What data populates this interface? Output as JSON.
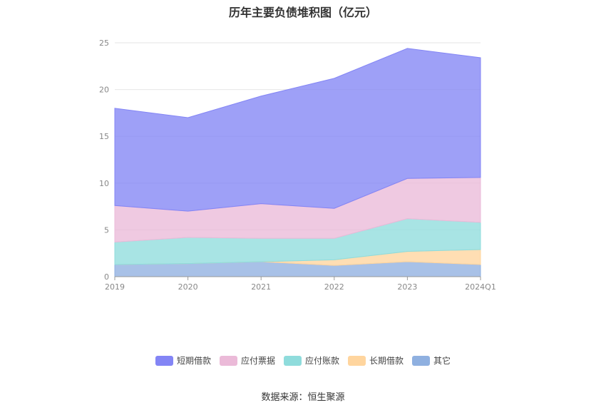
{
  "title": "历年主要负债堆积图（亿元）",
  "source_label": "数据来源：恒生聚源",
  "chart_data": {
    "type": "area",
    "stacked": true,
    "title": "历年主要负债堆积图（亿元）",
    "xlabel": "",
    "ylabel": "",
    "categories": [
      "2019",
      "2020",
      "2021",
      "2022",
      "2023",
      "2024Q1"
    ],
    "ylim": [
      0,
      25
    ],
    "yticks": [
      0,
      5,
      10,
      15,
      20,
      25
    ],
    "grid": true,
    "legend_position": "bottom",
    "series": [
      {
        "name": "其它",
        "color": "#8fb0e0",
        "values": [
          1.3,
          1.4,
          1.6,
          1.2,
          1.6,
          1.3
        ]
      },
      {
        "name": "长期借款",
        "color": "#ffd59e",
        "values": [
          0.0,
          0.0,
          0.0,
          0.6,
          1.1,
          1.6
        ]
      },
      {
        "name": "应付账款",
        "color": "#8fdcdc",
        "values": [
          2.4,
          2.8,
          2.5,
          2.3,
          3.5,
          2.9
        ]
      },
      {
        "name": "应付票据",
        "color": "#ebbad8",
        "values": [
          3.9,
          2.8,
          3.7,
          3.2,
          4.3,
          4.8
        ]
      },
      {
        "name": "短期借款",
        "color": "#8385f5",
        "values": [
          10.4,
          10.0,
          11.5,
          13.9,
          13.9,
          12.8
        ]
      }
    ],
    "legend_order": [
      "短期借款",
      "应付票据",
      "应付账款",
      "长期借款",
      "其它"
    ]
  }
}
